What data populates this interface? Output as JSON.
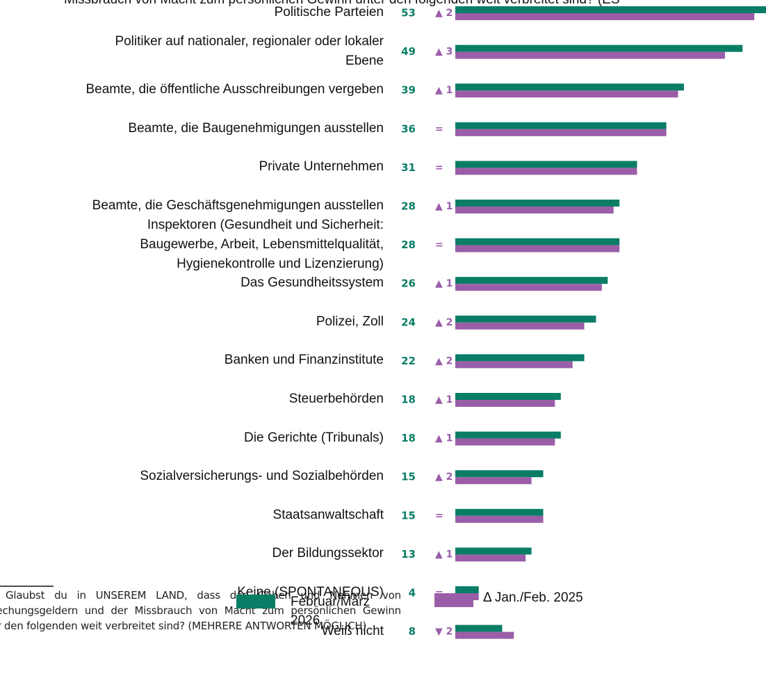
{
  "chart_data": {
    "type": "bar",
    "orientation": "horizontal",
    "title": "Missbrauch von Macht zum persönlichen Gewinn unter den folgenden weit verbreitet sind? (ES",
    "categories": [
      "Politische Parteien",
      "Politiker auf nationaler, regionaler oder lokaler\nEbene",
      "Beamte, die öffentliche Ausschreibungen vergeben",
      "Beamte, die Baugenehmigungen ausstellen",
      "Private Unternehmen",
      "Beamte, die Geschäftsgenehmigungen ausstellen",
      "Inspektoren (Gesundheit und Sicherheit:\nBaugewerbe, Arbeit, Lebensmittelqualität,\nHygienekontrolle und Lizenzierung)",
      "Das Gesundheitssystem",
      "Polizei, Zoll",
      "Banken und Finanzinstitute",
      "Steuerbehörden",
      "Die Gerichte (Tribunals)",
      "Sozialversicherungs- und Sozialbehörden",
      "Staatsanwaltschaft",
      "Der Bildungssektor",
      "Keine (SPONTANEOUS)",
      "Weiß nicht"
    ],
    "series": [
      {
        "name": "Februar/März 2026",
        "color": "#0a7d66",
        "values": [
          53,
          49,
          39,
          36,
          31,
          28,
          28,
          26,
          24,
          22,
          18,
          18,
          15,
          15,
          13,
          4,
          8
        ]
      },
      {
        "name": "Δ Jan./Feb. 2025",
        "color": "#9a5ea8",
        "values": [
          51,
          46,
          38,
          36,
          31,
          27,
          28,
          25,
          22,
          20,
          17,
          17,
          13,
          15,
          12,
          4,
          10
        ]
      }
    ],
    "change_labels": [
      "▲ 2",
      "▲ 3",
      "▲ 1",
      "=",
      "=",
      "▲ 1",
      "=",
      "▲ 1",
      "▲ 2",
      "▲ 2",
      "▲ 1",
      "▲ 1",
      "▲ 2",
      "=",
      "▲ 1",
      "=",
      "▼ 2"
    ],
    "xlim": [
      0,
      53
    ]
  },
  "footnote": "Glaubst du in UNSEREM LAND, dass das Geben und Nehmen von Bestechungsgeldern und der Missbrauch von Macht zum persönlichen Gewinn unter den folgenden weit verbreitet sind? (MEHRERE ANTWORTEN MÖGLICH)"
}
